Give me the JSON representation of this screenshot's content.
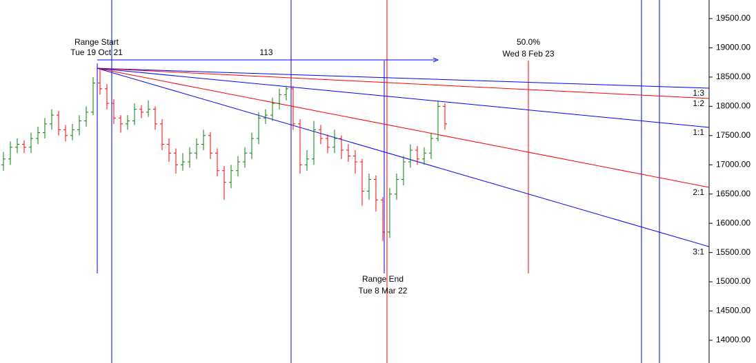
{
  "chart_data": {
    "type": "ohlc",
    "annotations": {
      "range_start": "Range Start",
      "range_start_date": "Tue 19 Oct 21",
      "range_end": "Range End",
      "range_end_date": "Tue 8 Mar 22",
      "bar_count": "113",
      "percent": "50.0%",
      "percent_date": "Wed 8 Feb 23"
    },
    "up_color": "#008000",
    "down_color": "#ff0000",
    "bars": [
      [
        17000,
        17220,
        16900,
        17100
      ],
      [
        17100,
        17400,
        17000,
        17300
      ],
      [
        17300,
        17450,
        17200,
        17350
      ],
      [
        17350,
        17420,
        17200,
        17300
      ],
      [
        17300,
        17550,
        17200,
        17450
      ],
      [
        17450,
        17650,
        17350,
        17550
      ],
      [
        17550,
        17800,
        17450,
        17700
      ],
      [
        17700,
        17950,
        17600,
        17850
      ],
      [
        17850,
        17920,
        17500,
        17600
      ],
      [
        17600,
        17680,
        17400,
        17500
      ],
      [
        17500,
        17700,
        17420,
        17600
      ],
      [
        17600,
        17850,
        17500,
        17750
      ],
      [
        17750,
        18000,
        17650,
        17900
      ],
      [
        17900,
        18500,
        17850,
        18400
      ],
      [
        18400,
        18650,
        18200,
        18300
      ],
      [
        18300,
        18380,
        17950,
        18050
      ],
      [
        18050,
        18120,
        17700,
        17800
      ],
      [
        17800,
        17850,
        17550,
        17700
      ],
      [
        17700,
        17850,
        17600,
        17750
      ],
      [
        17750,
        18050,
        17680,
        17950
      ],
      [
        17950,
        18020,
        17800,
        17900
      ],
      [
        17900,
        18100,
        17820,
        17950
      ],
      [
        17950,
        18000,
        17600,
        17700
      ],
      [
        17700,
        17780,
        17250,
        17350
      ],
      [
        17350,
        17450,
        17050,
        17200
      ],
      [
        17200,
        17280,
        16850,
        17000
      ],
      [
        17000,
        17200,
        16900,
        17050
      ],
      [
        17050,
        17300,
        16950,
        17200
      ],
      [
        17200,
        17450,
        17100,
        17350
      ],
      [
        17350,
        17600,
        17250,
        17500
      ],
      [
        17500,
        17560,
        17100,
        17200
      ],
      [
        17200,
        17280,
        16800,
        16900
      ],
      [
        16900,
        16980,
        16400,
        16700
      ],
      [
        16700,
        17000,
        16600,
        16900
      ],
      [
        16900,
        17150,
        16800,
        17050
      ],
      [
        17050,
        17300,
        16950,
        17200
      ],
      [
        17200,
        17550,
        17100,
        17450
      ],
      [
        17450,
        17900,
        17350,
        17800
      ],
      [
        17800,
        17950,
        17700,
        17850
      ],
      [
        17850,
        18150,
        17750,
        18050
      ],
      [
        18050,
        18300,
        17950,
        18200
      ],
      [
        18200,
        18350,
        18100,
        18300
      ],
      [
        18300,
        18350,
        17600,
        17700
      ],
      [
        17700,
        17780,
        16850,
        17000
      ],
      [
        17000,
        17250,
        16900,
        17100
      ],
      [
        17100,
        17750,
        17000,
        17600
      ],
      [
        17600,
        17680,
        17350,
        17450
      ],
      [
        17450,
        17520,
        17200,
        17300
      ],
      [
        17300,
        17600,
        17200,
        17450
      ],
      [
        17450,
        17500,
        17100,
        17250
      ],
      [
        17250,
        17350,
        17050,
        17150
      ],
      [
        17150,
        17250,
        16850,
        17050
      ],
      [
        17050,
        17100,
        16300,
        16550
      ],
      [
        16550,
        16850,
        16400,
        16750
      ],
      [
        16750,
        16820,
        16200,
        16400
      ],
      [
        16400,
        16450,
        15700,
        15850
      ],
      [
        15850,
        16600,
        15750,
        16500
      ],
      [
        16500,
        16850,
        16400,
        16750
      ],
      [
        16750,
        17150,
        16650,
        17050
      ],
      [
        17050,
        17350,
        16950,
        17250
      ],
      [
        17250,
        17320,
        17000,
        17100
      ],
      [
        17100,
        17300,
        17000,
        17200
      ],
      [
        17200,
        17550,
        17100,
        17450
      ],
      [
        17450,
        18100,
        17400,
        18000
      ],
      [
        18000,
        18050,
        17600,
        17700
      ]
    ],
    "fan": {
      "origin": 18650,
      "lines": [
        {
          "label": "1:3",
          "end": 18310,
          "color": "#0000ff"
        },
        {
          "label": "1:2",
          "end": 18134,
          "color": "#ff0000"
        },
        {
          "label": "1:1",
          "end": 17640,
          "color": "#0000ff"
        },
        {
          "label": "2:1",
          "end": 16614,
          "color": "#ff0000"
        },
        {
          "label": "3:1",
          "end": 15600,
          "color": "#0000ff"
        }
      ]
    },
    "ylim": [
      13611,
      19818
    ],
    "yticks": [
      {
        "value": 14000,
        "label": "14000.00"
      },
      {
        "value": 14500,
        "label": "14500.00"
      },
      {
        "value": 15000,
        "label": "15000.00"
      },
      {
        "value": 15500,
        "label": "15500.00"
      },
      {
        "value": 16000,
        "label": "16000.00"
      },
      {
        "value": 16500,
        "label": "16500.00"
      },
      {
        "value": 17000,
        "label": "17000.00"
      },
      {
        "value": 17500,
        "label": "17500.00"
      },
      {
        "value": 18000,
        "label": "18000.00"
      },
      {
        "value": 18500,
        "label": "18500.00"
      },
      {
        "value": 19000,
        "label": "19000.00"
      },
      {
        "value": 19500,
        "label": "19500.00"
      }
    ]
  }
}
